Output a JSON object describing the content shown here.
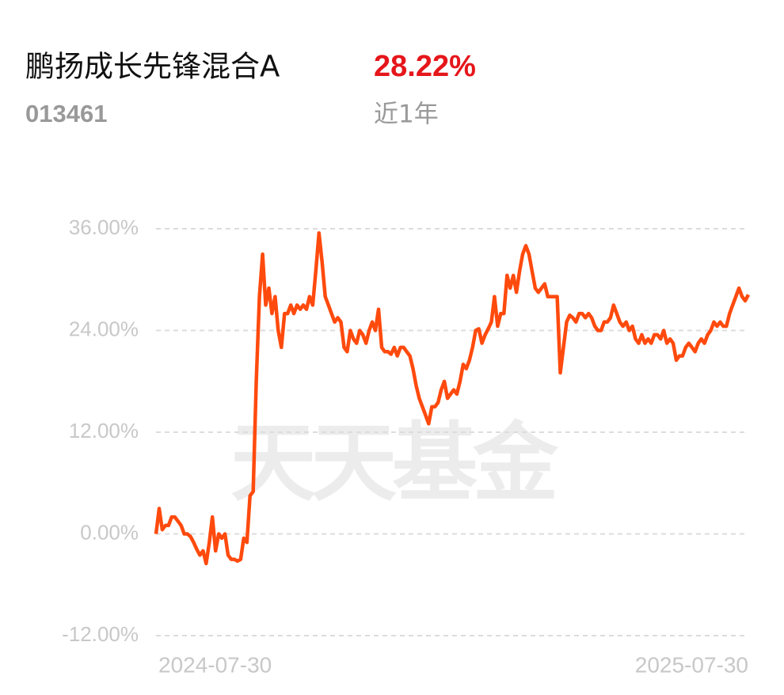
{
  "chart_data": {
    "type": "line",
    "title": "鹏扬成长先锋混合A",
    "return_label": "28.22%",
    "code": "013461",
    "period": "近1年",
    "watermark": "天天基金",
    "categories": [
      "2024-07-30",
      null,
      null,
      null,
      null,
      null,
      null,
      null,
      null,
      null,
      null,
      null,
      null,
      null,
      null,
      null,
      null,
      null,
      null,
      null,
      null,
      null,
      null,
      null,
      null,
      null,
      null,
      null,
      null,
      null,
      null,
      null,
      null,
      null,
      null,
      null,
      null,
      null,
      null,
      null,
      null,
      null,
      null,
      null,
      null,
      null,
      null,
      null,
      null,
      null,
      null,
      null,
      null,
      null,
      null,
      null,
      null,
      null,
      null,
      null,
      null,
      null,
      null,
      null,
      null,
      null,
      null,
      null,
      null,
      null,
      null,
      null,
      null,
      null,
      null,
      null,
      null,
      null,
      null,
      null,
      null,
      null,
      null,
      null,
      null,
      null,
      null,
      null,
      null,
      null,
      null,
      null,
      null,
      null,
      null,
      null,
      null,
      null,
      null,
      null,
      null,
      null,
      null,
      null,
      null,
      null,
      null,
      null,
      null,
      null,
      null,
      null,
      null,
      null,
      null,
      null,
      null,
      null,
      null,
      null,
      null,
      null,
      null,
      null,
      null,
      null,
      null,
      null,
      null,
      null,
      null,
      null,
      null,
      null,
      null,
      null,
      null,
      null,
      null,
      null,
      null,
      null,
      null,
      null,
      null,
      null,
      null,
      null,
      null,
      null,
      null,
      null,
      null,
      null,
      null,
      null,
      null,
      null,
      null,
      null,
      null,
      null,
      null,
      null,
      null,
      null,
      null,
      null,
      null,
      null,
      null,
      null,
      null,
      null,
      null,
      null,
      null,
      null,
      null,
      null,
      null,
      null,
      null,
      null,
      null,
      null,
      null,
      null,
      null,
      "2025-07-30"
    ],
    "series": [
      {
        "color": "#ff4a0d",
        "values": [
          0,
          3,
          0.5,
          1,
          1,
          2,
          2,
          1.5,
          1,
          0,
          0,
          -0.3,
          -1,
          -1.8,
          -2.5,
          -2,
          -3.5,
          -1,
          2,
          -2,
          0,
          -0.5,
          0,
          -2.5,
          -3,
          -3,
          -3.2,
          -3,
          -0.5,
          -1,
          4.5,
          5,
          18,
          28,
          33,
          27,
          29,
          26,
          28,
          24,
          22,
          26,
          26,
          27,
          26,
          27,
          26.5,
          27,
          26.5,
          28,
          27,
          31,
          35.5,
          32,
          28,
          27,
          26,
          25,
          25.5,
          25,
          22,
          21.5,
          24,
          23,
          22.5,
          24,
          23.5,
          22.5,
          24,
          25,
          24,
          26.5,
          22,
          21.5,
          21.5,
          21.2,
          22,
          21,
          22,
          22,
          21.5,
          21,
          19.5,
          17.5,
          16,
          15,
          14,
          13,
          15,
          15,
          15.5,
          17,
          18,
          16,
          16.5,
          17,
          16.5,
          18,
          20,
          19.5,
          20.5,
          22,
          24,
          24.2,
          22.5,
          23.5,
          24.2,
          25,
          28,
          24.5,
          26,
          26,
          30.5,
          29,
          30.5,
          28.5,
          31,
          33,
          34,
          33,
          31,
          29,
          28.5,
          29,
          29.5,
          28,
          28,
          28,
          28,
          19,
          22,
          25,
          25.8,
          25.5,
          25,
          26,
          26,
          25.5,
          26,
          25.5,
          24.5,
          24,
          24,
          25,
          25,
          25.5,
          27,
          26,
          25,
          24.5,
          25,
          24,
          24.5,
          23,
          22.5,
          23.5,
          22.5,
          23,
          22.5,
          23.5,
          23.5,
          23,
          24,
          22.5,
          23,
          22.5,
          20.5,
          21,
          21,
          22,
          22.5,
          22,
          21.5,
          22.5,
          23,
          22.5,
          23.5,
          24,
          25,
          24.5,
          25,
          24.5,
          24.5,
          26,
          27,
          28,
          29,
          28,
          27.5,
          28.22
        ]
      }
    ],
    "ylim": [
      -12,
      36
    ],
    "yticks": [
      {
        "value": -12,
        "label": "-12.00%"
      },
      {
        "value": 0,
        "label": "0.00%"
      },
      {
        "value": 12,
        "label": "12.00%"
      },
      {
        "value": 24,
        "label": "24.00%"
      },
      {
        "value": 36,
        "label": "36.00%"
      }
    ],
    "grid": true
  }
}
